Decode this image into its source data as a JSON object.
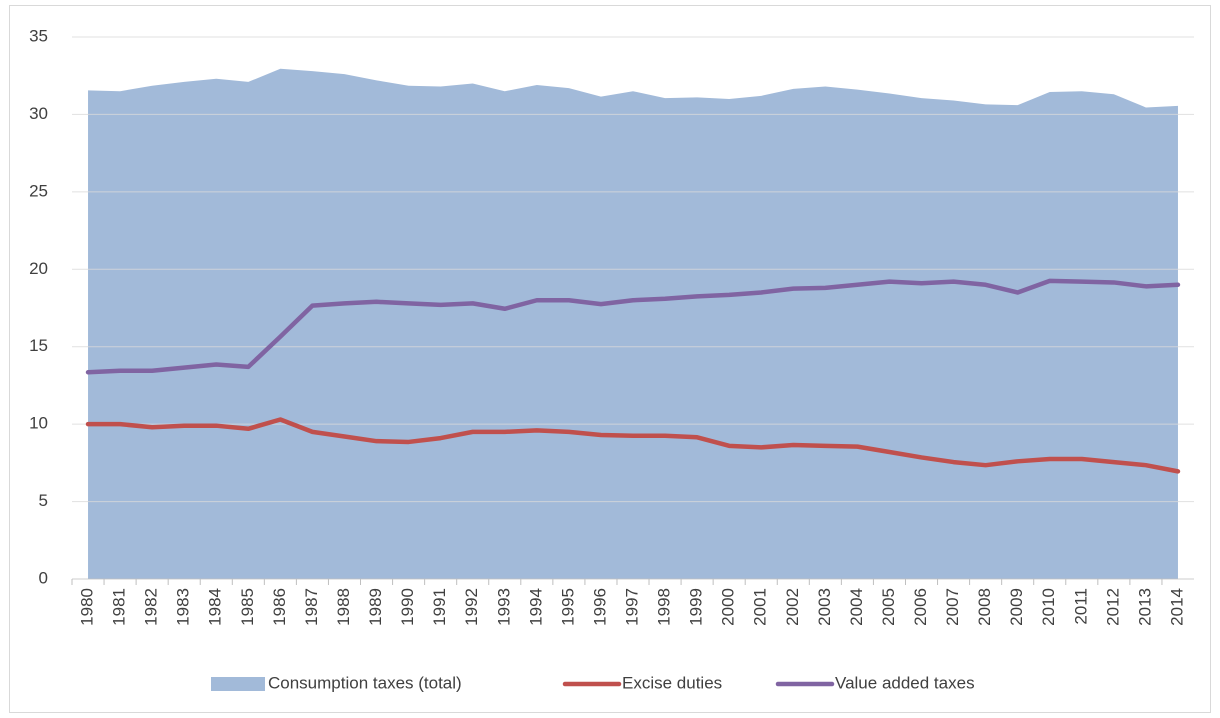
{
  "chart_data": {
    "type": "line",
    "categories": [
      "1980",
      "1981",
      "1982",
      "1983",
      "1984",
      "1985",
      "1986",
      "1987",
      "1988",
      "1989",
      "1990",
      "1991",
      "1992",
      "1993",
      "1994",
      "1995",
      "1996",
      "1997",
      "1998",
      "1999",
      "2000",
      "2001",
      "2002",
      "2003",
      "2004",
      "2005",
      "2006",
      "2007",
      "2008",
      "2009",
      "2010",
      "2011",
      "2012",
      "2013",
      "2014"
    ],
    "series": [
      {
        "name": "Consumption taxes (total)",
        "kind": "area",
        "color": "#a2bad9",
        "values": [
          31.55,
          31.5,
          31.85,
          32.1,
          32.3,
          32.1,
          32.95,
          32.8,
          32.6,
          32.2,
          31.85,
          31.8,
          32.0,
          31.5,
          31.9,
          31.7,
          31.15,
          31.5,
          31.05,
          31.1,
          31.0,
          31.2,
          31.65,
          31.8,
          31.6,
          31.35,
          31.05,
          30.9,
          30.65,
          30.6,
          31.45,
          31.5,
          31.3,
          30.45,
          30.55
        ]
      },
      {
        "name": "Excise duties",
        "kind": "line",
        "color": "#c0504d",
        "values": [
          10.0,
          10.0,
          9.8,
          9.9,
          9.9,
          9.7,
          10.3,
          9.5,
          9.2,
          8.9,
          8.85,
          9.1,
          9.5,
          9.5,
          9.6,
          9.5,
          9.3,
          9.25,
          9.25,
          9.15,
          8.6,
          8.5,
          8.65,
          8.6,
          8.55,
          8.2,
          7.85,
          7.55,
          7.35,
          7.6,
          7.75,
          7.75,
          7.55,
          7.35,
          6.95
        ]
      },
      {
        "name": "Value added taxes",
        "kind": "line",
        "color": "#8064a2",
        "values": [
          13.35,
          13.45,
          13.45,
          13.65,
          13.85,
          13.7,
          15.65,
          17.65,
          17.8,
          17.9,
          17.8,
          17.7,
          17.8,
          17.45,
          18.0,
          18.0,
          17.75,
          18.0,
          18.1,
          18.25,
          18.35,
          18.5,
          18.75,
          18.8,
          19.0,
          19.2,
          19.1,
          19.2,
          19.0,
          18.5,
          19.25,
          19.2,
          19.15,
          18.9,
          19.0
        ]
      }
    ],
    "ylim": [
      0,
      35
    ],
    "yticks": [
      0,
      5,
      10,
      15,
      20,
      25,
      30,
      35
    ],
    "grid": true,
    "legend": "bottom"
  }
}
